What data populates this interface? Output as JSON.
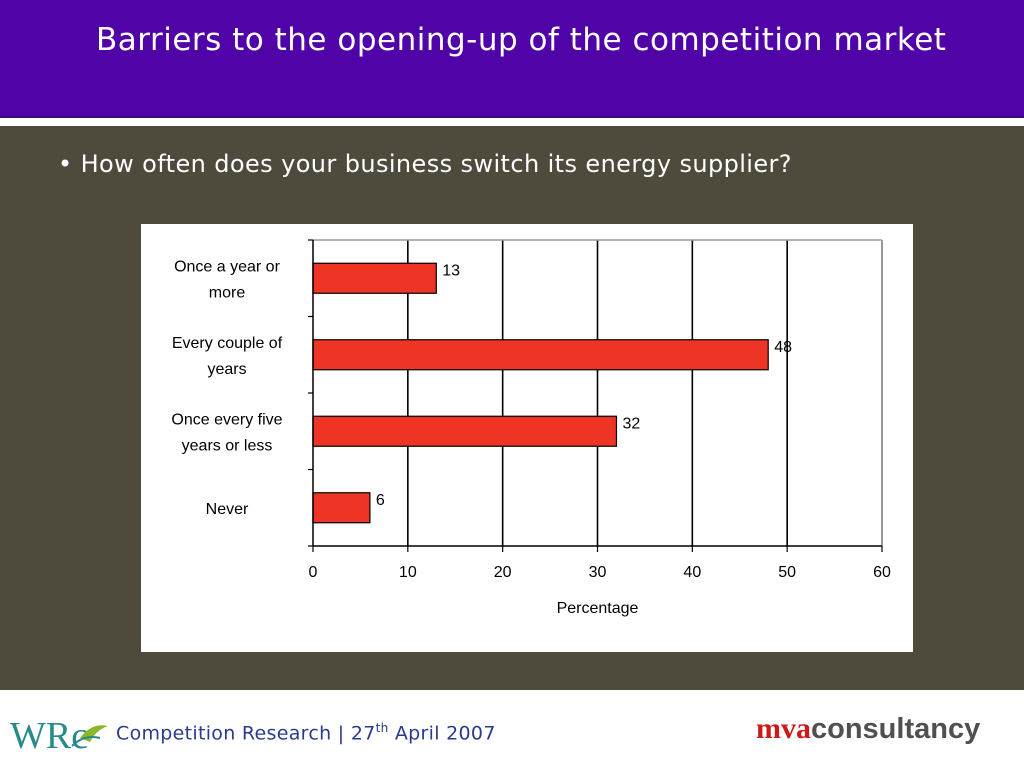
{
  "slide": {
    "title": "Barriers to the opening-up of the competition market",
    "bullet": "• How often does your business switch its energy supplier?"
  },
  "footer": {
    "text_main": "Competition Research | 27",
    "text_sup": "th",
    "text_tail": " April 2007",
    "left_logo_text": "WRc",
    "right_logo_part1": "mva",
    "right_logo_part2": "consultancy"
  },
  "chart_data": {
    "type": "bar",
    "orientation": "horizontal",
    "categories": [
      [
        "Once a year or",
        "more"
      ],
      [
        "Every couple of",
        "years"
      ],
      [
        "Once every five",
        "years or less"
      ],
      [
        "Never"
      ]
    ],
    "values": [
      13,
      48,
      32,
      6
    ],
    "data_labels": [
      "13",
      "48",
      "32",
      "6"
    ],
    "xlabel": "Percentage",
    "xlim": [
      0,
      60
    ],
    "xticks": [
      0,
      10,
      20,
      30,
      40,
      50,
      60
    ],
    "grid": "vertical",
    "bar_color": "#ee3424",
    "legend": "none"
  }
}
